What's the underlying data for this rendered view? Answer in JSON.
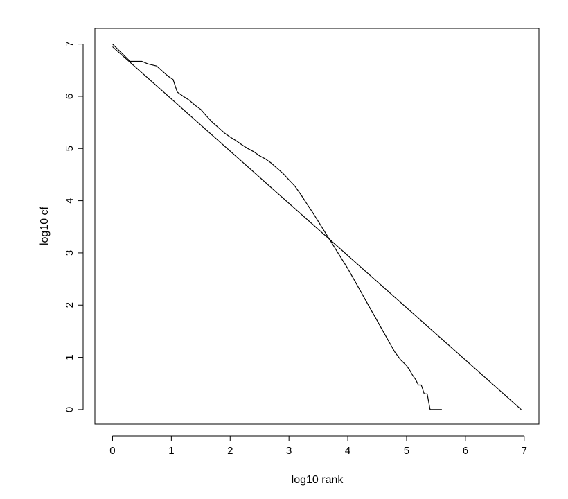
{
  "chart_data": {
    "type": "line",
    "title": "",
    "xlabel": "log10 rank",
    "ylabel": "log10 cf",
    "xlim": [
      -0.3,
      7.25
    ],
    "ylim": [
      -0.28,
      7.3
    ],
    "xticks": [
      "0",
      "1",
      "2",
      "3",
      "4",
      "5",
      "6",
      "7"
    ],
    "yticks": [
      "0",
      "1",
      "2",
      "3",
      "4",
      "5",
      "6",
      "7"
    ],
    "grid": false,
    "legend": "none",
    "series": [
      {
        "kind": "observed-curve",
        "x": [
          0,
          0.3,
          0.5,
          0.6,
          0.75,
          0.85,
          0.95,
          1.03,
          1.1,
          1.2,
          1.3,
          1.4,
          1.5,
          1.6,
          1.7,
          1.8,
          1.9,
          2.0,
          2.1,
          2.2,
          2.3,
          2.4,
          2.5,
          2.6,
          2.7,
          2.8,
          2.9,
          3.0,
          3.1,
          3.2,
          3.3,
          3.4,
          3.5,
          3.6,
          3.7,
          3.8,
          3.9,
          4.0,
          4.1,
          4.2,
          4.3,
          4.4,
          4.5,
          4.6,
          4.7,
          4.8,
          4.9,
          5.0,
          5.05,
          5.1,
          5.15,
          5.2,
          5.25,
          5.3,
          5.35,
          5.4,
          5.45,
          5.5,
          5.6
        ],
        "y": [
          7.0,
          6.67,
          6.67,
          6.62,
          6.58,
          6.48,
          6.38,
          6.32,
          6.08,
          6.0,
          5.93,
          5.83,
          5.75,
          5.62,
          5.5,
          5.4,
          5.3,
          5.22,
          5.15,
          5.07,
          5.0,
          4.94,
          4.86,
          4.8,
          4.72,
          4.62,
          4.52,
          4.4,
          4.28,
          4.12,
          3.95,
          3.78,
          3.6,
          3.42,
          3.24,
          3.06,
          2.88,
          2.7,
          2.5,
          2.3,
          2.1,
          1.9,
          1.7,
          1.5,
          1.3,
          1.1,
          0.95,
          0.84,
          0.76,
          0.66,
          0.58,
          0.47,
          0.47,
          0.3,
          0.3,
          0.0,
          0.0,
          0.0,
          0.0
        ]
      },
      {
        "kind": "fitted-line",
        "x": [
          0,
          6.95
        ],
        "y": [
          6.95,
          0.0
        ]
      }
    ]
  }
}
